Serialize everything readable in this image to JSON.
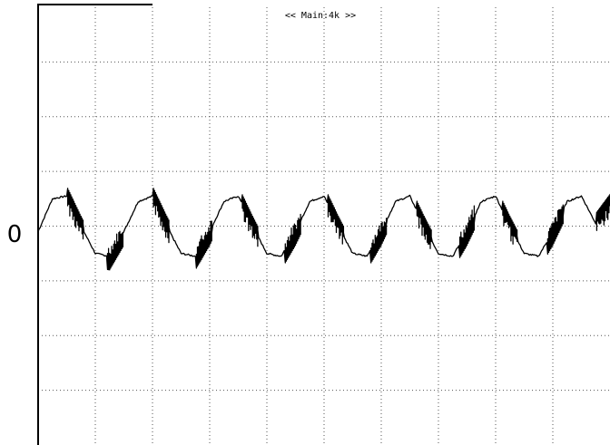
{
  "header": {
    "banner": "<< Main:4k >>"
  },
  "chart_data": {
    "type": "line",
    "title": "",
    "xlabel": "",
    "ylabel": "",
    "ytick_labels": [
      "0"
    ],
    "grid": true,
    "xdivisions": 10,
    "ydivisions": 8,
    "ylim": [
      -4,
      4
    ],
    "series": [
      {
        "shape": "periodic triangular wave with switching spikes",
        "x": [
          0,
          0.25,
          0.5,
          0.75,
          1.0,
          1.25,
          1.5,
          1.75,
          2.0,
          2.25,
          2.5,
          2.75,
          3.0,
          3.25,
          3.5,
          3.75,
          4.0,
          4.25,
          4.5,
          4.75,
          5.0,
          5.25,
          5.5,
          5.75,
          6.0,
          6.25,
          6.5,
          6.75,
          7.0,
          7.25,
          7.5,
          7.75,
          8.0,
          8.25,
          8.5,
          8.75,
          9.0,
          9.25,
          9.5,
          9.75,
          10.0
        ],
        "y": [
          -0.1,
          0.5,
          0.55,
          0,
          -0.5,
          -0.55,
          -0.1,
          0.45,
          0.55,
          0,
          -0.5,
          -0.55,
          -0.1,
          0.45,
          0.55,
          0,
          -0.5,
          -0.55,
          -0.1,
          0.45,
          0.55,
          0,
          -0.5,
          -0.55,
          -0.1,
          0.45,
          0.55,
          0,
          -0.5,
          -0.55,
          -0.1,
          0.45,
          0.55,
          0,
          -0.5,
          -0.55,
          -0.1,
          0.45,
          0.55,
          0.05,
          0.4
        ],
        "peaks_x": [
          0.65,
          2.15,
          3.7,
          5.2,
          6.75,
          8.25,
          9.9
        ],
        "troughs_x": [
          1.35,
          2.9,
          4.45,
          5.95,
          7.5,
          9.05
        ]
      }
    ]
  }
}
